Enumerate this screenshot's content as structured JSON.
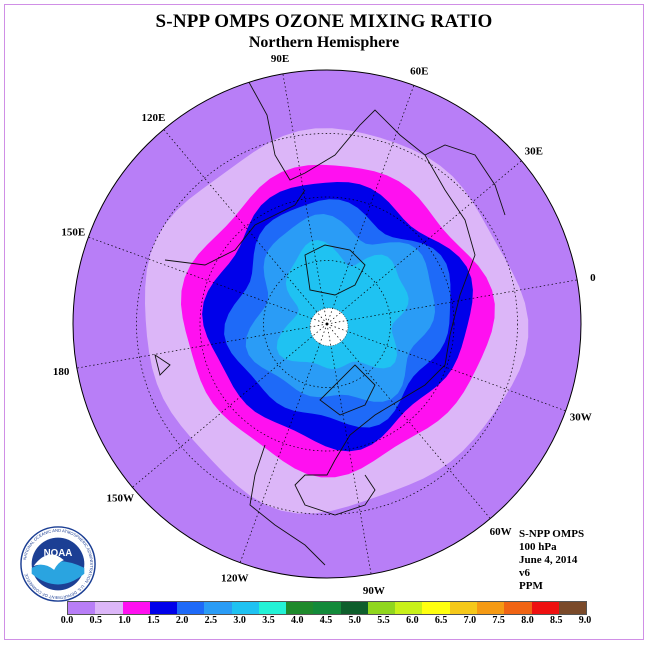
{
  "title": "S-NPP OMPS OZONE MIXING RATIO",
  "subtitle": "Northern Hemisphere",
  "longitude_labels": [
    {
      "text": "90E",
      "lon": 90
    },
    {
      "text": "60E",
      "lon": 60
    },
    {
      "text": "30E",
      "lon": 30
    },
    {
      "text": "0",
      "lon": 0
    },
    {
      "text": "30W",
      "lon": -30
    },
    {
      "text": "60W",
      "lon": -60
    },
    {
      "text": "90W",
      "lon": -90
    },
    {
      "text": "120W",
      "lon": -120
    },
    {
      "text": "150W",
      "lon": -150
    },
    {
      "text": "180",
      "lon": 180
    },
    {
      "text": "150E",
      "lon": 150
    },
    {
      "text": "120E",
      "lon": 120
    }
  ],
  "info": {
    "line1": "S-NPP OMPS",
    "line2": "100 hPa",
    "line3": "June 4, 2014",
    "line4": "v6",
    "line5": "PPM"
  },
  "logo": {
    "text": "NOAA",
    "ring_text": "NATIONAL OCEANIC AND ATMOSPHERIC ADMINISTRATION · U.S. DEPARTMENT OF COMMERCE"
  },
  "colorbar": {
    "colors": [
      "#b87ef7",
      "#dcb6f8",
      "#ff10f0",
      "#0000ea",
      "#1e6af8",
      "#2a9cf6",
      "#1fc2f2",
      "#23f2d6",
      "#1e8a2c",
      "#138a3a",
      "#0e5e2c",
      "#90d61e",
      "#c8f01a",
      "#ffff10",
      "#f5c81a",
      "#f59a14",
      "#f06414",
      "#ee1010",
      "#7a4a2a"
    ],
    "ticks": [
      "0.0",
      "0.5",
      "1.0",
      "1.5",
      "2.0",
      "2.5",
      "3.0",
      "3.5",
      "4.0",
      "4.5",
      "5.0",
      "5.5",
      "6.0",
      "6.5",
      "7.0",
      "7.5",
      "8.0",
      "8.5",
      "9.0"
    ]
  },
  "map_fields": {
    "contour_bands": [
      {
        "level": "0.0-0.5",
        "color": "#b87ef7"
      },
      {
        "level": "0.5-1.0",
        "color": "#dcb6f8"
      },
      {
        "level": "1.0-1.5",
        "color": "#ff10f0"
      },
      {
        "level": "1.5-2.0",
        "color": "#0000ea"
      },
      {
        "level": "2.0-2.5",
        "color": "#1e6af8"
      },
      {
        "level": "2.5-3.0",
        "color": "#2a9cf6"
      },
      {
        "level": "3.0-3.5",
        "color": "#1fc2f2"
      }
    ],
    "pole_fill": "#ffffff"
  }
}
